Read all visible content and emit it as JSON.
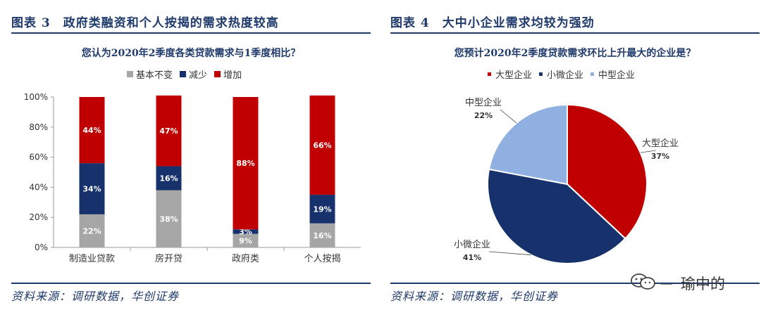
{
  "colors": {
    "navy": "#1f3a6b",
    "gray": "#a6a6a6",
    "dark_blue": "#16316b",
    "red": "#c00000",
    "light_blue": "#8fb0e0"
  },
  "left": {
    "figure_title": "图表 3　政府类融资和个人按揭的需求热度较高",
    "source": "资料来源：调研数据，华创证券"
  },
  "right": {
    "figure_title": "图表 4　大中小企业需求均较为强劲",
    "source": "资料来源：调研数据，华创证券"
  },
  "watermark": {
    "text": "瑜中的",
    "icon": "wechat-icon"
  },
  "chart_data": [
    {
      "type": "bar",
      "stacked": true,
      "title": "您认为2020年2季度各类贷款需求与1季度相比？",
      "categories": [
        "制造业贷款",
        "房开贷",
        "政府类",
        "个人按揭"
      ],
      "series": [
        {
          "name": "基本不变",
          "color": "#a6a6a6",
          "values": [
            22,
            38,
            9,
            16
          ],
          "labels": [
            "22%",
            "38%",
            "9%",
            "16%"
          ]
        },
        {
          "name": "减少",
          "color": "#16316b",
          "values": [
            34,
            16,
            3,
            19
          ],
          "labels": [
            "34%",
            "16%",
            "3%",
            "19%"
          ]
        },
        {
          "name": "增加",
          "color": "#c00000",
          "values": [
            44,
            47,
            88,
            66
          ],
          "labels": [
            "44%",
            "47%",
            "88%",
            "66%"
          ]
        }
      ],
      "ylim": [
        0,
        100
      ],
      "yticks": [
        "0%",
        "20%",
        "40%",
        "60%",
        "80%",
        "100%"
      ],
      "legend_position": "top",
      "grid": false
    },
    {
      "type": "pie",
      "title": "您预计2020年2季度贷款需求环比上升最大的企业是？",
      "slices": [
        {
          "name": "大型企业",
          "value": 37,
          "label": "37%",
          "color": "#c00000"
        },
        {
          "name": "小微企业",
          "value": 41,
          "label": "41%",
          "color": "#16316b"
        },
        {
          "name": "中型企业",
          "value": 22,
          "label": "22%",
          "color": "#8fb0e0"
        }
      ],
      "legend_position": "top"
    }
  ]
}
